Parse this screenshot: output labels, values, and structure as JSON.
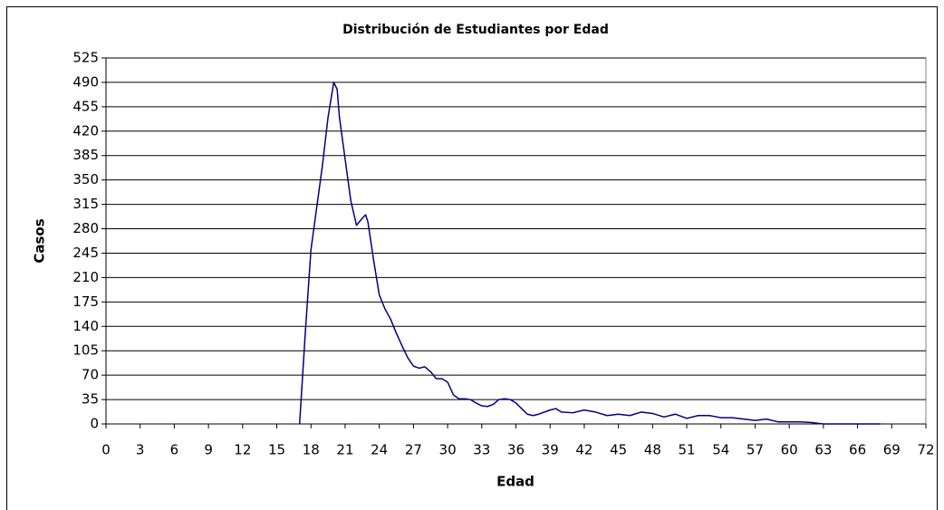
{
  "chart_data": {
    "type": "line",
    "title": "Distribución de Estudiantes por Edad",
    "x_label": "Edad",
    "y_label": "Casos",
    "color": "#000080",
    "grid": true,
    "x": [
      17,
      17.5,
      18,
      19,
      19.5,
      19.8,
      20,
      20.3,
      20.5,
      21,
      21.5,
      22,
      22.5,
      22.8,
      23,
      23.5,
      24,
      24.5,
      25,
      25.5,
      26,
      26.5,
      27,
      27.5,
      28,
      28.5,
      29,
      29.5,
      30,
      30.5,
      31,
      31.5,
      32,
      32.5,
      33,
      33.5,
      34,
      34.5,
      35,
      35.5,
      36,
      36.5,
      37,
      37.5,
      38,
      39,
      39.5,
      40,
      41,
      42,
      43,
      44,
      45,
      46,
      47,
      48,
      49,
      50,
      51,
      52,
      53,
      54,
      55,
      56,
      57,
      58,
      59,
      60,
      61,
      62,
      63,
      64,
      65,
      66,
      67,
      68
    ],
    "values": [
      0,
      130,
      250,
      370,
      440,
      470,
      490,
      480,
      440,
      380,
      320,
      285,
      295,
      300,
      290,
      235,
      185,
      165,
      150,
      130,
      112,
      95,
      83,
      80,
      82,
      75,
      65,
      65,
      60,
      42,
      36,
      36,
      35,
      30,
      26,
      25,
      28,
      35,
      36,
      35,
      30,
      22,
      14,
      12,
      14,
      20,
      22,
      17,
      16,
      20,
      17,
      12,
      14,
      12,
      17,
      15,
      10,
      14,
      8,
      12,
      12,
      9,
      9,
      7,
      5,
      7,
      3,
      3,
      3,
      2,
      0,
      0,
      0,
      0,
      0,
      0
    ],
    "xlim": [
      0,
      72
    ],
    "xticks": [
      0,
      3,
      6,
      9,
      12,
      15,
      18,
      21,
      24,
      27,
      30,
      33,
      36,
      39,
      42,
      45,
      48,
      51,
      54,
      57,
      60,
      63,
      66,
      69,
      72
    ],
    "ylim": [
      0,
      525
    ],
    "yticks": [
      0,
      35,
      70,
      105,
      140,
      175,
      210,
      245,
      280,
      315,
      350,
      385,
      420,
      455,
      490,
      525
    ]
  }
}
